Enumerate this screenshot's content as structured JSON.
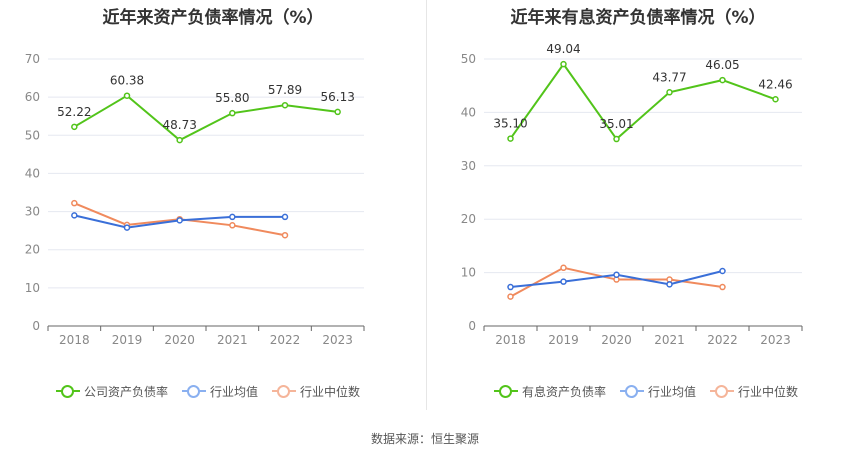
{
  "source_text": "数据来源：恒生聚源",
  "colors": {
    "company": "#52c41a",
    "industry_avg": "#3a6fd8",
    "industry_median": "#f08a5d",
    "legend_avg": "#8ab0f0",
    "legend_median": "#f5b59a",
    "grid": "#e5e8f0",
    "axis": "#888888"
  },
  "chart_data": [
    {
      "type": "line",
      "title": "近年来资产负债率情况（%）",
      "categories": [
        "2018",
        "2019",
        "2020",
        "2021",
        "2022",
        "2023"
      ],
      "ylim": [
        0,
        70
      ],
      "yticks": [
        "0",
        "10",
        "20",
        "30",
        "40",
        "50",
        "60",
        "70"
      ],
      "grid": true,
      "legend_position": "bottom",
      "series": [
        {
          "name": "公司资产负债率",
          "key": "company",
          "values": [
            52.22,
            60.38,
            48.73,
            55.8,
            57.89,
            56.13
          ],
          "labels": [
            "52.22",
            "60.38",
            "48.73",
            "55.80",
            "57.89",
            "56.13"
          ]
        },
        {
          "name": "行业均值",
          "key": "industry_avg",
          "values": [
            29.0,
            25.8,
            27.7,
            28.6,
            28.6,
            null
          ]
        },
        {
          "name": "行业中位数",
          "key": "industry_median",
          "values": [
            32.2,
            26.5,
            28.0,
            26.4,
            23.8,
            null
          ]
        }
      ]
    },
    {
      "type": "line",
      "title": "近年来有息资产负债率情况（%）",
      "categories": [
        "2018",
        "2019",
        "2020",
        "2021",
        "2022",
        "2023"
      ],
      "ylim": [
        0,
        50
      ],
      "yticks": [
        "0",
        "10",
        "20",
        "30",
        "40",
        "50"
      ],
      "grid": true,
      "legend_position": "bottom",
      "series": [
        {
          "name": "有息资产负债率",
          "key": "company",
          "values": [
            35.1,
            49.04,
            35.01,
            43.77,
            46.05,
            42.46
          ],
          "labels": [
            "35.10",
            "49.04",
            "35.01",
            "43.77",
            "46.05",
            "42.46"
          ]
        },
        {
          "name": "行业均值",
          "key": "industry_avg",
          "values": [
            7.3,
            8.3,
            9.6,
            7.8,
            10.3,
            null
          ]
        },
        {
          "name": "行业中位数",
          "key": "industry_median",
          "values": [
            5.5,
            10.9,
            8.7,
            8.7,
            7.3,
            null
          ]
        }
      ]
    }
  ]
}
